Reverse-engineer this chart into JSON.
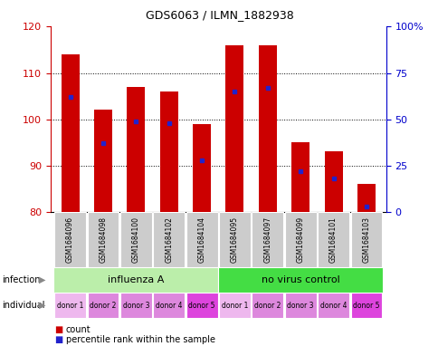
{
  "title": "GDS6063 / ILMN_1882938",
  "samples": [
    "GSM1684096",
    "GSM1684098",
    "GSM1684100",
    "GSM1684102",
    "GSM1684104",
    "GSM1684095",
    "GSM1684097",
    "GSM1684099",
    "GSM1684101",
    "GSM1684103"
  ],
  "count_values": [
    114,
    102,
    107,
    106,
    99,
    116,
    116,
    95,
    93,
    86
  ],
  "percentile_values": [
    62,
    37,
    49,
    48,
    28,
    65,
    67,
    22,
    18,
    3
  ],
  "ylim_left": [
    80,
    120
  ],
  "ylim_right": [
    0,
    100
  ],
  "yticks_left": [
    80,
    90,
    100,
    110,
    120
  ],
  "yticks_right": [
    0,
    25,
    50,
    75,
    100
  ],
  "bar_color": "#cc0000",
  "dot_color": "#2222cc",
  "infection_groups": [
    {
      "label": "influenza A",
      "start": 0,
      "end": 5,
      "color": "#bbeeaa"
    },
    {
      "label": "no virus control",
      "start": 5,
      "end": 10,
      "color": "#44dd44"
    }
  ],
  "individual_labels": [
    "donor 1",
    "donor 2",
    "donor 3",
    "donor 4",
    "donor 5",
    "donor 1",
    "donor 2",
    "donor 3",
    "donor 4",
    "donor 5"
  ],
  "individual_colors": [
    "#eeb8ee",
    "#dd88dd",
    "#dd88dd",
    "#dd88dd",
    "#dd44dd",
    "#eeb8ee",
    "#dd88dd",
    "#dd88dd",
    "#dd88dd",
    "#dd44dd"
  ],
  "sample_bg_color": "#cccccc",
  "legend_count_label": "count",
  "legend_percentile_label": "percentile rank within the sample",
  "infection_label": "infection",
  "individual_label": "individual",
  "left_tick_color": "#cc0000",
  "right_tick_color": "#0000cc",
  "title_fontsize": 9,
  "bar_width": 0.55
}
